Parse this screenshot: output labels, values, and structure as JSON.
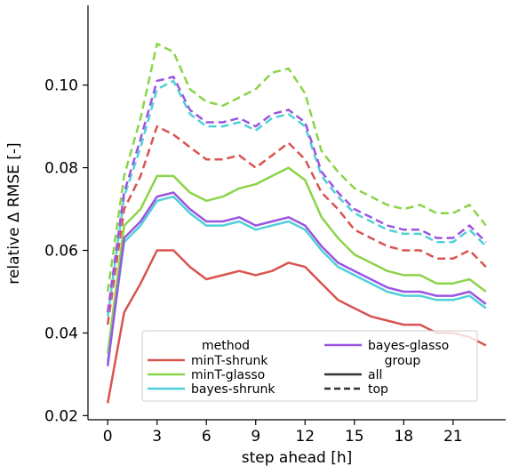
{
  "chart_data": {
    "type": "line",
    "xlabel": "step ahead [h]",
    "ylabel": "relative Δ RMSE [-]",
    "xlim": [
      -1.2,
      24.2
    ],
    "ylim": [
      0.019,
      0.1193
    ],
    "xticks": [
      0,
      3,
      6,
      9,
      12,
      15,
      18,
      21
    ],
    "xtick_labels": [
      "0",
      "3",
      "6",
      "9",
      "12",
      "15",
      "18",
      "21"
    ],
    "yticks": [
      0.02,
      0.04,
      0.06,
      0.08,
      0.1
    ],
    "ytick_labels": [
      "0.02",
      "0.04",
      "0.06",
      "0.08",
      "0.10"
    ],
    "grid": false,
    "legend_position": "bottom-center",
    "legend": {
      "method_title": "method",
      "methods": [
        {
          "name": "minT-shrunk",
          "color": "#d9534f"
        },
        {
          "name": "minT-glasso",
          "color": "#8bd44a"
        },
        {
          "name": "bayes-shrunk",
          "color": "#4fd0d8"
        },
        {
          "name": "bayes-glasso",
          "color": "#9b55e0"
        }
      ],
      "group_title": "group",
      "groups": [
        {
          "name": "all",
          "dash": "solid"
        },
        {
          "name": "top",
          "dash": "dashed"
        }
      ]
    },
    "x": [
      0,
      1,
      2,
      3,
      4,
      5,
      6,
      7,
      8,
      9,
      10,
      11,
      12,
      13,
      14,
      15,
      16,
      17,
      18,
      19,
      20,
      21,
      22,
      23
    ],
    "series": [
      {
        "name": "minT-shrunk",
        "group": "all",
        "color": "#d9534f",
        "dash": "solid",
        "values": [
          0.023,
          0.045,
          0.052,
          0.06,
          0.06,
          0.056,
          0.053,
          0.054,
          0.055,
          0.054,
          0.055,
          0.057,
          0.056,
          0.052,
          0.048,
          0.046,
          0.044,
          0.043,
          0.042,
          0.042,
          0.04,
          0.04,
          0.039,
          0.037
        ]
      },
      {
        "name": "minT-glasso",
        "group": "all",
        "color": "#8bd44a",
        "dash": "solid",
        "values": [
          0.035,
          0.066,
          0.07,
          0.078,
          0.078,
          0.074,
          0.072,
          0.073,
          0.075,
          0.076,
          0.078,
          0.08,
          0.077,
          0.068,
          0.063,
          0.059,
          0.057,
          0.055,
          0.054,
          0.054,
          0.052,
          0.052,
          0.053,
          0.05
        ]
      },
      {
        "name": "bayes-shrunk",
        "group": "all",
        "color": "#4fd0d8",
        "dash": "solid",
        "values": [
          0.033,
          0.062,
          0.066,
          0.072,
          0.073,
          0.069,
          0.066,
          0.066,
          0.067,
          0.065,
          0.066,
          0.067,
          0.065,
          0.06,
          0.056,
          0.054,
          0.052,
          0.05,
          0.049,
          0.049,
          0.048,
          0.048,
          0.049,
          0.046
        ]
      },
      {
        "name": "bayes-glasso",
        "group": "all",
        "color": "#9b55e0",
        "dash": "solid",
        "values": [
          0.032,
          0.063,
          0.067,
          0.073,
          0.074,
          0.07,
          0.067,
          0.067,
          0.068,
          0.066,
          0.067,
          0.068,
          0.066,
          0.061,
          0.057,
          0.055,
          0.053,
          0.051,
          0.05,
          0.05,
          0.049,
          0.049,
          0.05,
          0.047
        ]
      },
      {
        "name": "minT-shrunk",
        "group": "top",
        "color": "#d9534f",
        "dash": "dashed",
        "values": [
          0.042,
          0.07,
          0.078,
          0.09,
          0.088,
          0.085,
          0.082,
          0.082,
          0.083,
          0.08,
          0.083,
          0.086,
          0.082,
          0.074,
          0.07,
          0.065,
          0.063,
          0.061,
          0.06,
          0.06,
          0.058,
          0.058,
          0.06,
          0.056
        ]
      },
      {
        "name": "minT-glasso",
        "group": "top",
        "color": "#8bd44a",
        "dash": "dashed",
        "values": [
          0.05,
          0.078,
          0.092,
          0.11,
          0.108,
          0.099,
          0.096,
          0.095,
          0.097,
          0.099,
          0.103,
          0.104,
          0.098,
          0.084,
          0.079,
          0.075,
          0.073,
          0.071,
          0.07,
          0.071,
          0.069,
          0.069,
          0.071,
          0.066
        ]
      },
      {
        "name": "bayes-shrunk",
        "group": "top",
        "color": "#4fd0d8",
        "dash": "dashed",
        "values": [
          0.044,
          0.073,
          0.085,
          0.099,
          0.101,
          0.093,
          0.09,
          0.09,
          0.091,
          0.089,
          0.092,
          0.093,
          0.09,
          0.078,
          0.073,
          0.069,
          0.067,
          0.065,
          0.064,
          0.064,
          0.062,
          0.062,
          0.065,
          0.061
        ]
      },
      {
        "name": "bayes-glasso",
        "group": "top",
        "color": "#9b55e0",
        "dash": "dashed",
        "values": [
          0.045,
          0.074,
          0.087,
          0.101,
          0.102,
          0.094,
          0.091,
          0.091,
          0.092,
          0.09,
          0.093,
          0.094,
          0.091,
          0.079,
          0.074,
          0.07,
          0.068,
          0.066,
          0.065,
          0.065,
          0.063,
          0.063,
          0.066,
          0.062
        ]
      }
    ]
  }
}
